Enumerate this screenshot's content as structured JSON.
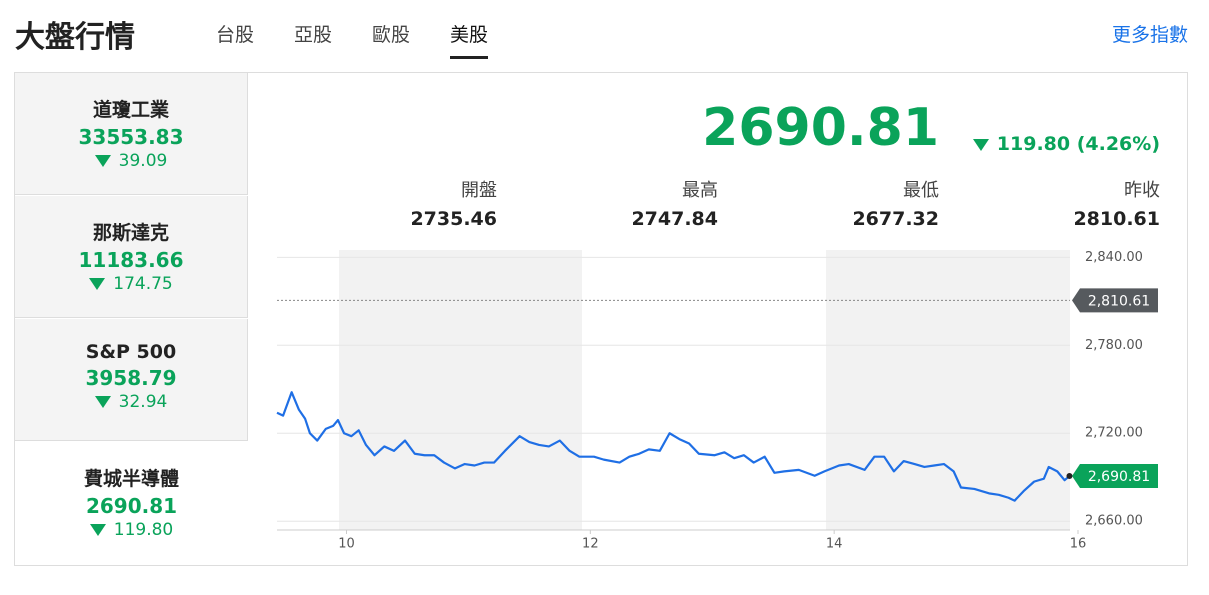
{
  "header": {
    "title": "大盤行情",
    "tabs": [
      "台股",
      "亞股",
      "歐股",
      "美股"
    ],
    "more_link": "更多指數"
  },
  "indices": [
    {
      "name": "道瓊工業",
      "value": "33553.83",
      "change": "39.09"
    },
    {
      "name": "那斯達克",
      "value": "11183.66",
      "change": "174.75"
    },
    {
      "name": "S&P 500",
      "value": "3958.79",
      "change": "32.94"
    },
    {
      "name": "費城半導體",
      "value": "2690.81",
      "change": "119.80"
    }
  ],
  "main": {
    "value": "2690.81",
    "change": "119.80 (4.26%)"
  },
  "stats": [
    {
      "label": "開盤",
      "value": "2735.46"
    },
    {
      "label": "最高",
      "value": "2747.84"
    },
    {
      "label": "最低",
      "value": "2677.32"
    },
    {
      "label": "昨收",
      "value": "2810.61"
    }
  ],
  "chart_data": {
    "type": "line",
    "x": [
      9.43,
      9.48,
      9.55,
      9.61,
      9.66,
      9.7,
      9.76,
      9.83,
      9.89,
      9.93,
      9.98,
      10.04,
      10.1,
      10.16,
      10.23,
      10.31,
      10.39,
      10.48,
      10.56,
      10.64,
      10.72,
      10.8,
      10.89,
      10.97,
      11.05,
      11.13,
      11.21,
      11.3,
      11.42,
      11.5,
      11.58,
      11.66,
      11.75,
      11.83,
      11.91,
      12.03,
      12.11,
      12.24,
      12.32,
      12.4,
      12.48,
      12.57,
      12.65,
      12.73,
      12.81,
      12.89,
      13.02,
      13.1,
      13.18,
      13.26,
      13.34,
      13.43,
      13.51,
      13.59,
      13.71,
      13.84,
      13.92,
      14.04,
      14.12,
      14.25,
      14.33,
      14.41,
      14.49,
      14.57,
      14.66,
      14.74,
      14.82,
      14.9,
      14.98,
      15.04,
      15.15,
      15.27,
      15.35,
      15.43,
      15.48,
      15.56,
      15.64,
      15.72,
      15.76,
      15.83,
      15.89,
      15.93
    ],
    "series": [
      {
        "color": "#1f6fe5",
        "values": [
          2734,
          2732,
          2748,
          2736,
          2730,
          2720,
          2715,
          2723,
          2725,
          2729,
          2720,
          2718,
          2722,
          2712,
          2705,
          2711,
          2708,
          2715,
          2706,
          2705,
          2705,
          2700,
          2696,
          2699,
          2698,
          2700,
          2700,
          2708,
          2718,
          2714,
          2712,
          2711,
          2715,
          2708,
          2704,
          2704,
          2702,
          2700,
          2704,
          2706,
          2709,
          2708,
          2720,
          2716,
          2713,
          2706,
          2705,
          2707,
          2703,
          2705,
          2700,
          2704,
          2693,
          2694,
          2695,
          2691,
          2694,
          2698,
          2699,
          2695,
          2704,
          2704,
          2694,
          2701,
          2699,
          2697,
          2698,
          2699,
          2694,
          2683,
          2682,
          2679,
          2678,
          2676,
          2674,
          2681,
          2687,
          2689,
          2697,
          2694,
          2688,
          2690.81
        ]
      }
    ],
    "end_label": "2,690.81",
    "ref_line": {
      "value": 2810.61,
      "label": "2,810.61"
    },
    "xlim": [
      9.43,
      16
    ],
    "ylim": [
      2654,
      2845
    ],
    "xticks": [
      10,
      12,
      14,
      16
    ],
    "yticks": [
      {
        "value": 2660,
        "label": "2,660.00"
      },
      {
        "value": 2720,
        "label": "2,720.00"
      },
      {
        "value": 2780,
        "label": "2,780.00"
      },
      {
        "value": 2840,
        "label": "2,840.00"
      }
    ],
    "grid": true
  }
}
